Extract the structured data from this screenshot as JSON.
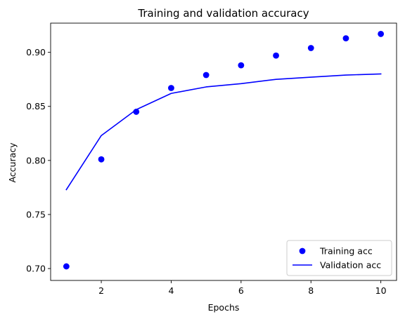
{
  "chart_data": {
    "type": "line",
    "title": "Training and validation accuracy",
    "xlabel": "Epochs",
    "ylabel": "Accuracy",
    "xlim": [
      0.55,
      10.45
    ],
    "ylim": [
      0.689,
      0.927
    ],
    "xticks": [
      2,
      4,
      6,
      8,
      10
    ],
    "yticks": [
      0.7,
      0.75,
      0.8,
      0.85,
      0.9
    ],
    "ytick_labels": [
      "0.70",
      "0.75",
      "0.80",
      "0.85",
      "0.90"
    ],
    "x": [
      1,
      2,
      3,
      4,
      5,
      6,
      7,
      8,
      9,
      10
    ],
    "series": [
      {
        "name": "Training acc",
        "style": "markers",
        "color": "#0000ff",
        "values": [
          0.702,
          0.801,
          0.845,
          0.867,
          0.879,
          0.888,
          0.897,
          0.904,
          0.913,
          0.917
        ]
      },
      {
        "name": "Validation acc",
        "style": "line",
        "color": "#0000ff",
        "values": [
          0.773,
          0.823,
          0.847,
          0.862,
          0.868,
          0.871,
          0.875,
          0.877,
          0.879,
          0.88
        ]
      }
    ],
    "grid": false,
    "legend_position": "lower-right"
  }
}
